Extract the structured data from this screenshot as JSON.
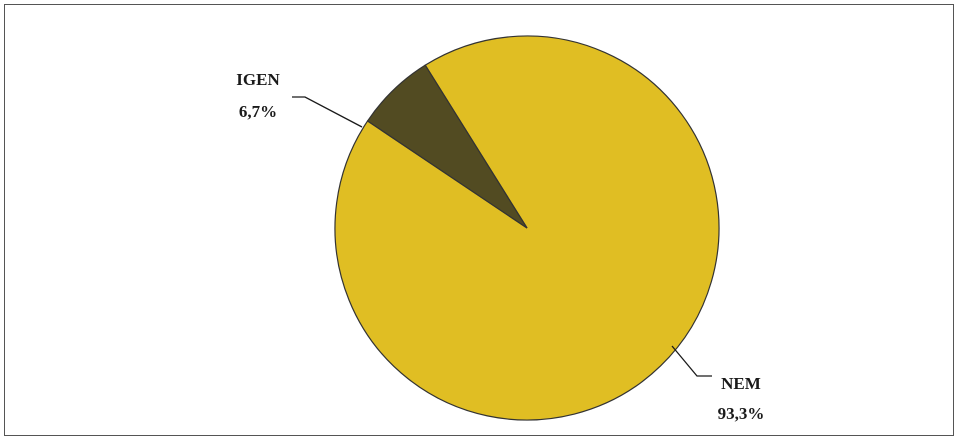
{
  "chart_data": {
    "type": "pie",
    "title": "",
    "slices": [
      {
        "label": "NEM",
        "value": 93.3,
        "value_label": "93,3%",
        "color": "#E0BE23"
      },
      {
        "label": "IGEN",
        "value": 6.7,
        "value_label": "6,7%",
        "color": "#524B22"
      }
    ],
    "legend": "none",
    "border_color": "#333333"
  }
}
